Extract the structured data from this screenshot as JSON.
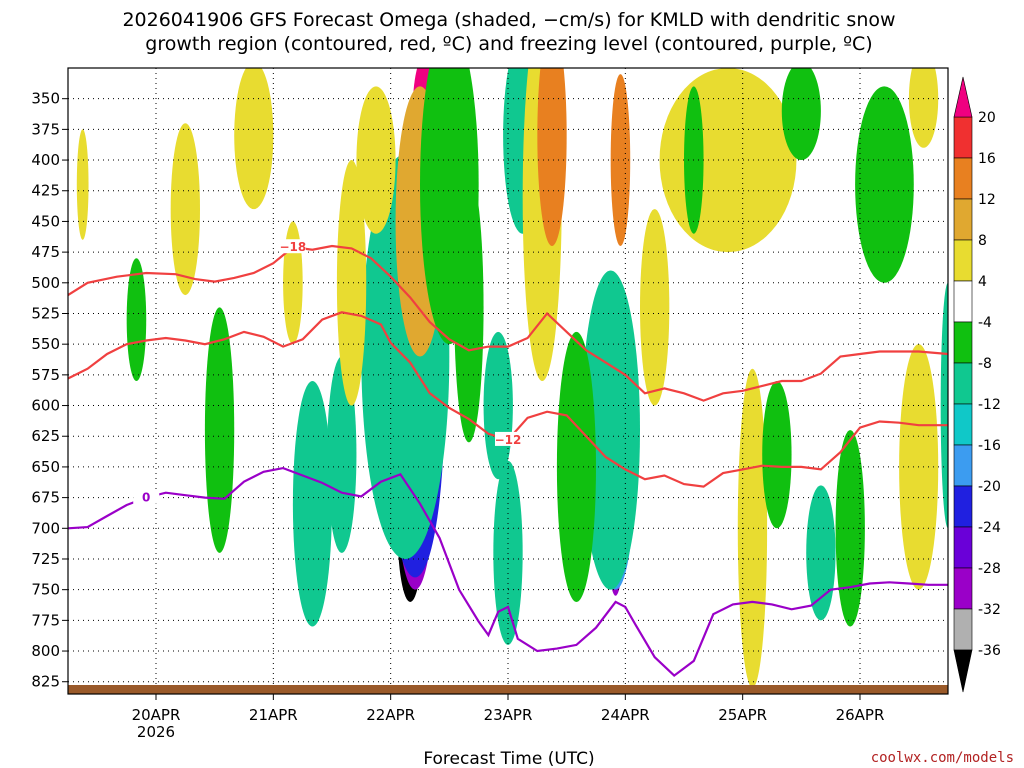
{
  "chart_data": {
    "type": "heatmap",
    "title_line1": "2026041906 GFS Forecast Omega (shaded, −cm/s) for KMLD with dendritic snow",
    "title_line2": "growth region (contoured, red, ºC) and freezing level (contoured, purple, ºC)",
    "xlabel": "Forecast Time (UTC)",
    "credit": "coolwx.com/models",
    "x_start_hours": 0,
    "x_end_hours": 180,
    "xlim": [
      0,
      180
    ],
    "ylim_hPa": [
      835,
      325
    ],
    "y_ticks": [
      350,
      375,
      400,
      425,
      450,
      475,
      500,
      525,
      550,
      575,
      600,
      625,
      650,
      675,
      700,
      725,
      750,
      775,
      800,
      825
    ],
    "x_ticks": [
      {
        "hour": 18,
        "label": "20APR",
        "sublabel": "2026"
      },
      {
        "hour": 42,
        "label": "21APR",
        "sublabel": ""
      },
      {
        "hour": 66,
        "label": "22APR",
        "sublabel": ""
      },
      {
        "hour": 90,
        "label": "23APR",
        "sublabel": ""
      },
      {
        "hour": 114,
        "label": "24APR",
        "sublabel": ""
      },
      {
        "hour": 138,
        "label": "25APR",
        "sublabel": ""
      },
      {
        "hour": 162,
        "label": "26APR",
        "sublabel": ""
      }
    ],
    "colorbar": {
      "levels": [
        -36,
        -32,
        -28,
        -24,
        -20,
        -16,
        -12,
        -8,
        -4,
        4,
        8,
        12,
        16,
        20
      ],
      "colors": [
        "#000000",
        "#b0b0b0",
        "#9a00c8",
        "#6a00d8",
        "#2020e0",
        "#3c9cf0",
        "#10c8c8",
        "#10c890",
        "#10c010",
        "#ffffff",
        "#e8dc30",
        "#e0a830",
        "#e88020",
        "#f03030",
        "#f00080"
      ]
    },
    "omega_blobs": [
      {
        "t": 70,
        "p": 700,
        "dt": 2.6,
        "dp": 120,
        "v": -36
      },
      {
        "t": 71,
        "p": 650,
        "dt": 4,
        "dp": 200,
        "v": -30
      },
      {
        "t": 71,
        "p": 600,
        "dt": 6,
        "dp": 280,
        "v": -20
      },
      {
        "t": 69,
        "p": 560,
        "dt": 9,
        "dp": 330,
        "v": -10
      },
      {
        "t": 112,
        "p": 680,
        "dt": 2,
        "dp": 150,
        "v": -28
      },
      {
        "t": 112,
        "p": 650,
        "dt": 4,
        "dp": 200,
        "v": -16
      },
      {
        "t": 111,
        "p": 620,
        "dt": 6,
        "dp": 260,
        "v": -8
      },
      {
        "t": 63,
        "p": 400,
        "dt": 4,
        "dp": 120,
        "v": 8
      },
      {
        "t": 73,
        "p": 360,
        "dt": 2.5,
        "dp": 90,
        "v": 22
      },
      {
        "t": 72,
        "p": 450,
        "dt": 5,
        "dp": 220,
        "v": 10
      },
      {
        "t": 78,
        "p": 420,
        "dt": 6,
        "dp": 260,
        "v": -6
      },
      {
        "t": 93,
        "p": 380,
        "dt": 4,
        "dp": 160,
        "v": -8
      },
      {
        "t": 97,
        "p": 430,
        "dt": 4,
        "dp": 300,
        "v": 8
      },
      {
        "t": 99,
        "p": 380,
        "dt": 3,
        "dp": 180,
        "v": 14
      },
      {
        "t": 104,
        "p": 650,
        "dt": 4,
        "dp": 220,
        "v": -6
      },
      {
        "t": 113,
        "p": 400,
        "dt": 2,
        "dp": 140,
        "v": 16
      },
      {
        "t": 135,
        "p": 400,
        "dt": 14,
        "dp": 150,
        "v": 6
      },
      {
        "t": 167,
        "p": 420,
        "dt": 6,
        "dp": 160,
        "v": -6
      },
      {
        "t": 150,
        "p": 360,
        "dt": 4,
        "dp": 80,
        "v": -6
      },
      {
        "t": 160,
        "p": 700,
        "dt": 3,
        "dp": 160,
        "v": -6
      },
      {
        "t": 174,
        "p": 650,
        "dt": 4,
        "dp": 200,
        "v": 6
      },
      {
        "t": 180,
        "p": 600,
        "dt": 1.5,
        "dp": 200,
        "v": -8
      },
      {
        "t": 38,
        "p": 380,
        "dt": 4,
        "dp": 120,
        "v": 6
      },
      {
        "t": 24,
        "p": 440,
        "dt": 3,
        "dp": 140,
        "v": 6
      },
      {
        "t": 14,
        "p": 530,
        "dt": 2,
        "dp": 100,
        "v": -6
      },
      {
        "t": 31,
        "p": 620,
        "dt": 3,
        "dp": 200,
        "v": -6
      },
      {
        "t": 50,
        "p": 680,
        "dt": 4,
        "dp": 200,
        "v": -8
      },
      {
        "t": 56,
        "p": 640,
        "dt": 3,
        "dp": 160,
        "v": -8
      },
      {
        "t": 58,
        "p": 500,
        "dt": 3,
        "dp": 200,
        "v": 6
      },
      {
        "t": 90,
        "p": 720,
        "dt": 3,
        "dp": 150,
        "v": -8
      },
      {
        "t": 88,
        "p": 600,
        "dt": 3,
        "dp": 120,
        "v": -8
      },
      {
        "t": 140,
        "p": 700,
        "dt": 3,
        "dp": 260,
        "v": 6
      },
      {
        "t": 145,
        "p": 640,
        "dt": 3,
        "dp": 120,
        "v": -6
      },
      {
        "t": 154,
        "p": 720,
        "dt": 3,
        "dp": 110,
        "v": -8
      },
      {
        "t": 3,
        "p": 420,
        "dt": 1.2,
        "dp": 90,
        "v": 6
      },
      {
        "t": 46,
        "p": 500,
        "dt": 2,
        "dp": 100,
        "v": 6
      },
      {
        "t": 82,
        "p": 520,
        "dt": 3,
        "dp": 220,
        "v": -6
      },
      {
        "t": 120,
        "p": 520,
        "dt": 3,
        "dp": 160,
        "v": 6
      },
      {
        "t": 128,
        "p": 400,
        "dt": 2,
        "dp": 120,
        "v": -6
      },
      {
        "t": 175,
        "p": 350,
        "dt": 3,
        "dp": 80,
        "v": 6
      }
    ],
    "contours": [
      {
        "name": "-18",
        "color": "#f04040",
        "label": "−18",
        "label_at": 46,
        "points": [
          [
            0,
            510
          ],
          [
            4,
            500
          ],
          [
            10,
            495
          ],
          [
            16,
            492
          ],
          [
            22,
            493
          ],
          [
            26,
            497
          ],
          [
            30,
            499
          ],
          [
            34,
            496
          ],
          [
            38,
            492
          ],
          [
            42,
            484
          ],
          [
            46,
            471
          ],
          [
            50,
            473
          ],
          [
            54,
            470
          ],
          [
            58,
            472
          ],
          [
            62,
            480
          ],
          [
            66,
            495
          ],
          [
            70,
            512
          ],
          [
            74,
            532
          ],
          [
            78,
            546
          ],
          [
            82,
            555
          ],
          [
            86,
            552
          ],
          [
            90,
            552
          ],
          [
            94,
            545
          ],
          [
            98,
            525
          ],
          [
            102,
            540
          ],
          [
            106,
            555
          ],
          [
            110,
            565
          ],
          [
            114,
            575
          ],
          [
            118,
            590
          ],
          [
            122,
            586
          ],
          [
            126,
            590
          ],
          [
            130,
            596
          ],
          [
            134,
            590
          ],
          [
            138,
            588
          ],
          [
            142,
            584
          ],
          [
            146,
            580
          ],
          [
            150,
            580
          ],
          [
            154,
            574
          ],
          [
            158,
            560
          ],
          [
            162,
            558
          ],
          [
            166,
            556
          ],
          [
            170,
            556
          ],
          [
            174,
            556
          ],
          [
            180,
            558
          ]
        ]
      },
      {
        "name": "-12",
        "color": "#f04040",
        "label": "−12",
        "label_at": 92,
        "points": [
          [
            0,
            578
          ],
          [
            4,
            570
          ],
          [
            8,
            558
          ],
          [
            12,
            550
          ],
          [
            16,
            547
          ],
          [
            20,
            545
          ],
          [
            24,
            547
          ],
          [
            28,
            550
          ],
          [
            32,
            546
          ],
          [
            36,
            540
          ],
          [
            40,
            544
          ],
          [
            44,
            552
          ],
          [
            48,
            546
          ],
          [
            52,
            530
          ],
          [
            56,
            524
          ],
          [
            60,
            527
          ],
          [
            64,
            534
          ],
          [
            66,
            549
          ],
          [
            70,
            565
          ],
          [
            74,
            590
          ],
          [
            78,
            602
          ],
          [
            82,
            611
          ],
          [
            86,
            623
          ],
          [
            90,
            628
          ],
          [
            94,
            610
          ],
          [
            98,
            605
          ],
          [
            102,
            608
          ],
          [
            106,
            625
          ],
          [
            110,
            642
          ],
          [
            114,
            652
          ],
          [
            118,
            660
          ],
          [
            122,
            657
          ],
          [
            126,
            664
          ],
          [
            130,
            666
          ],
          [
            134,
            655
          ],
          [
            138,
            652
          ],
          [
            142,
            649
          ],
          [
            146,
            650
          ],
          [
            150,
            650
          ],
          [
            154,
            652
          ],
          [
            158,
            638
          ],
          [
            162,
            618
          ],
          [
            166,
            613
          ],
          [
            170,
            614
          ],
          [
            174,
            616
          ],
          [
            180,
            616
          ]
        ]
      },
      {
        "name": "0",
        "color": "#9a00c8",
        "label": "0",
        "label_at": 18,
        "points": [
          [
            0,
            700
          ],
          [
            4,
            699
          ],
          [
            8,
            690
          ],
          [
            12,
            681
          ],
          [
            16,
            675
          ],
          [
            20,
            671
          ],
          [
            24,
            673
          ],
          [
            28,
            675
          ],
          [
            32,
            676
          ],
          [
            36,
            662
          ],
          [
            40,
            654
          ],
          [
            44,
            651
          ],
          [
            48,
            657
          ],
          [
            52,
            663
          ],
          [
            56,
            671
          ],
          [
            60,
            674
          ],
          [
            64,
            662
          ],
          [
            68,
            656
          ],
          [
            72,
            680
          ],
          [
            76,
            708
          ],
          [
            80,
            750
          ],
          [
            84,
            776
          ],
          [
            86,
            787
          ],
          [
            88,
            768
          ],
          [
            90,
            764
          ],
          [
            92,
            790
          ],
          [
            96,
            800
          ],
          [
            100,
            798
          ],
          [
            104,
            795
          ],
          [
            108,
            781
          ],
          [
            112,
            760
          ],
          [
            114,
            764
          ],
          [
            116,
            778
          ],
          [
            120,
            805
          ],
          [
            124,
            820
          ],
          [
            128,
            808
          ],
          [
            132,
            770
          ],
          [
            136,
            762
          ],
          [
            140,
            760
          ],
          [
            144,
            762
          ],
          [
            148,
            766
          ],
          [
            152,
            763
          ],
          [
            156,
            750
          ],
          [
            160,
            748
          ],
          [
            164,
            745
          ],
          [
            168,
            744
          ],
          [
            172,
            745
          ],
          [
            176,
            746
          ],
          [
            180,
            746
          ]
        ]
      }
    ]
  }
}
